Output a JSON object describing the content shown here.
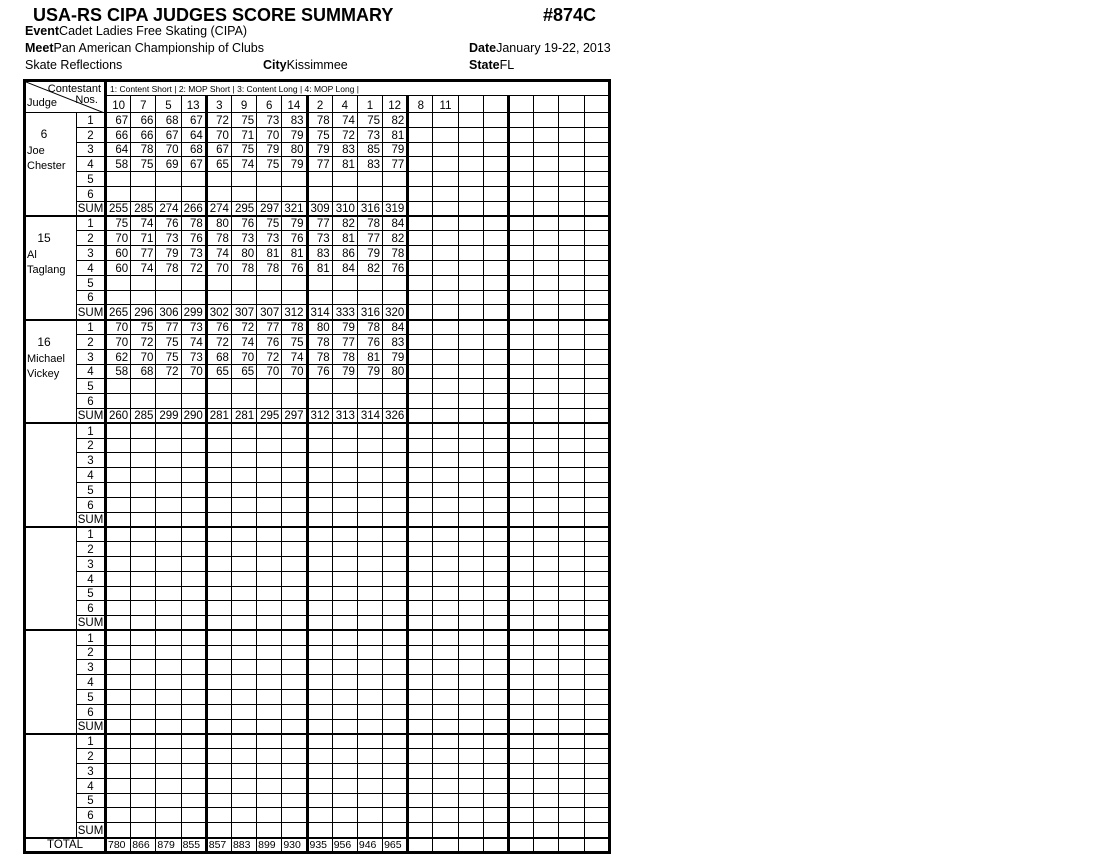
{
  "header": {
    "title": "USA-RS CIPA JUDGES SCORE SUMMARY",
    "form_no": "#874C",
    "event_label": "Event",
    "event": "Cadet Ladies Free Skating  (CIPA)",
    "meet_label": "Meet",
    "meet": "Pan American Championship of Clubs",
    "date_label": "Date",
    "date": "January 19-22, 2013",
    "club": "Skate Reflections",
    "city_label": "City",
    "city": "Kissimmee",
    "state_label": "State",
    "state": "FL"
  },
  "table": {
    "corner_top": "Contestant",
    "corner_nos": "Nos.",
    "corner_judge": "Judge",
    "legend": "1: Content Short | 2: MOP Short | 3: Content Long | 4: MOP Long |",
    "contestants": [
      "10",
      "7",
      "5",
      "13",
      "3",
      "9",
      "6",
      "14",
      "2",
      "4",
      "1",
      "12",
      "8",
      "11",
      "",
      "",
      "",
      "",
      "",
      ""
    ],
    "row_labels": [
      "1",
      "2",
      "3",
      "4",
      "5",
      "6",
      "SUM"
    ],
    "total_label": "TOTAL",
    "judges": [
      {
        "number": "6",
        "first": "Joe",
        "last": "Chester",
        "scores": [
          [
            "67",
            "66",
            "68",
            "67",
            "72",
            "75",
            "73",
            "83",
            "78",
            "74",
            "75",
            "82"
          ],
          [
            "66",
            "66",
            "67",
            "64",
            "70",
            "71",
            "70",
            "79",
            "75",
            "72",
            "73",
            "81"
          ],
          [
            "64",
            "78",
            "70",
            "68",
            "67",
            "75",
            "79",
            "80",
            "79",
            "83",
            "85",
            "79"
          ],
          [
            "58",
            "75",
            "69",
            "67",
            "65",
            "74",
            "75",
            "79",
            "77",
            "81",
            "83",
            "77"
          ],
          [],
          [],
          [
            "255",
            "285",
            "274",
            "266",
            "274",
            "295",
            "297",
            "321",
            "309",
            "310",
            "316",
            "319"
          ]
        ]
      },
      {
        "number": "15",
        "first": "Al",
        "last": "Taglang",
        "scores": [
          [
            "75",
            "74",
            "76",
            "78",
            "80",
            "76",
            "75",
            "79",
            "77",
            "82",
            "78",
            "84"
          ],
          [
            "70",
            "71",
            "73",
            "76",
            "78",
            "73",
            "73",
            "76",
            "73",
            "81",
            "77",
            "82"
          ],
          [
            "60",
            "77",
            "79",
            "73",
            "74",
            "80",
            "81",
            "81",
            "83",
            "86",
            "79",
            "78"
          ],
          [
            "60",
            "74",
            "78",
            "72",
            "70",
            "78",
            "78",
            "76",
            "81",
            "84",
            "82",
            "76"
          ],
          [],
          [],
          [
            "265",
            "296",
            "306",
            "299",
            "302",
            "307",
            "307",
            "312",
            "314",
            "333",
            "316",
            "320"
          ]
        ]
      },
      {
        "number": "16",
        "first": "Michael",
        "last": "Vickey",
        "scores": [
          [
            "70",
            "75",
            "77",
            "73",
            "76",
            "72",
            "77",
            "78",
            "80",
            "79",
            "78",
            "84"
          ],
          [
            "70",
            "72",
            "75",
            "74",
            "72",
            "74",
            "76",
            "75",
            "78",
            "77",
            "76",
            "83"
          ],
          [
            "62",
            "70",
            "75",
            "73",
            "68",
            "70",
            "72",
            "74",
            "78",
            "78",
            "81",
            "79"
          ],
          [
            "58",
            "68",
            "72",
            "70",
            "65",
            "65",
            "70",
            "70",
            "76",
            "79",
            "79",
            "80"
          ],
          [],
          [],
          [
            "260",
            "285",
            "299",
            "290",
            "281",
            "281",
            "295",
            "297",
            "312",
            "313",
            "314",
            "326"
          ]
        ]
      },
      {
        "number": "",
        "first": "",
        "last": "",
        "scores": []
      },
      {
        "number": "",
        "first": "",
        "last": "",
        "scores": []
      },
      {
        "number": "",
        "first": "",
        "last": "",
        "scores": []
      },
      {
        "number": "",
        "first": "",
        "last": "",
        "scores": []
      }
    ],
    "totals": [
      "780",
      "866",
      "879",
      "855",
      "857",
      "883",
      "899",
      "930",
      "935",
      "956",
      "946",
      "965"
    ]
  }
}
